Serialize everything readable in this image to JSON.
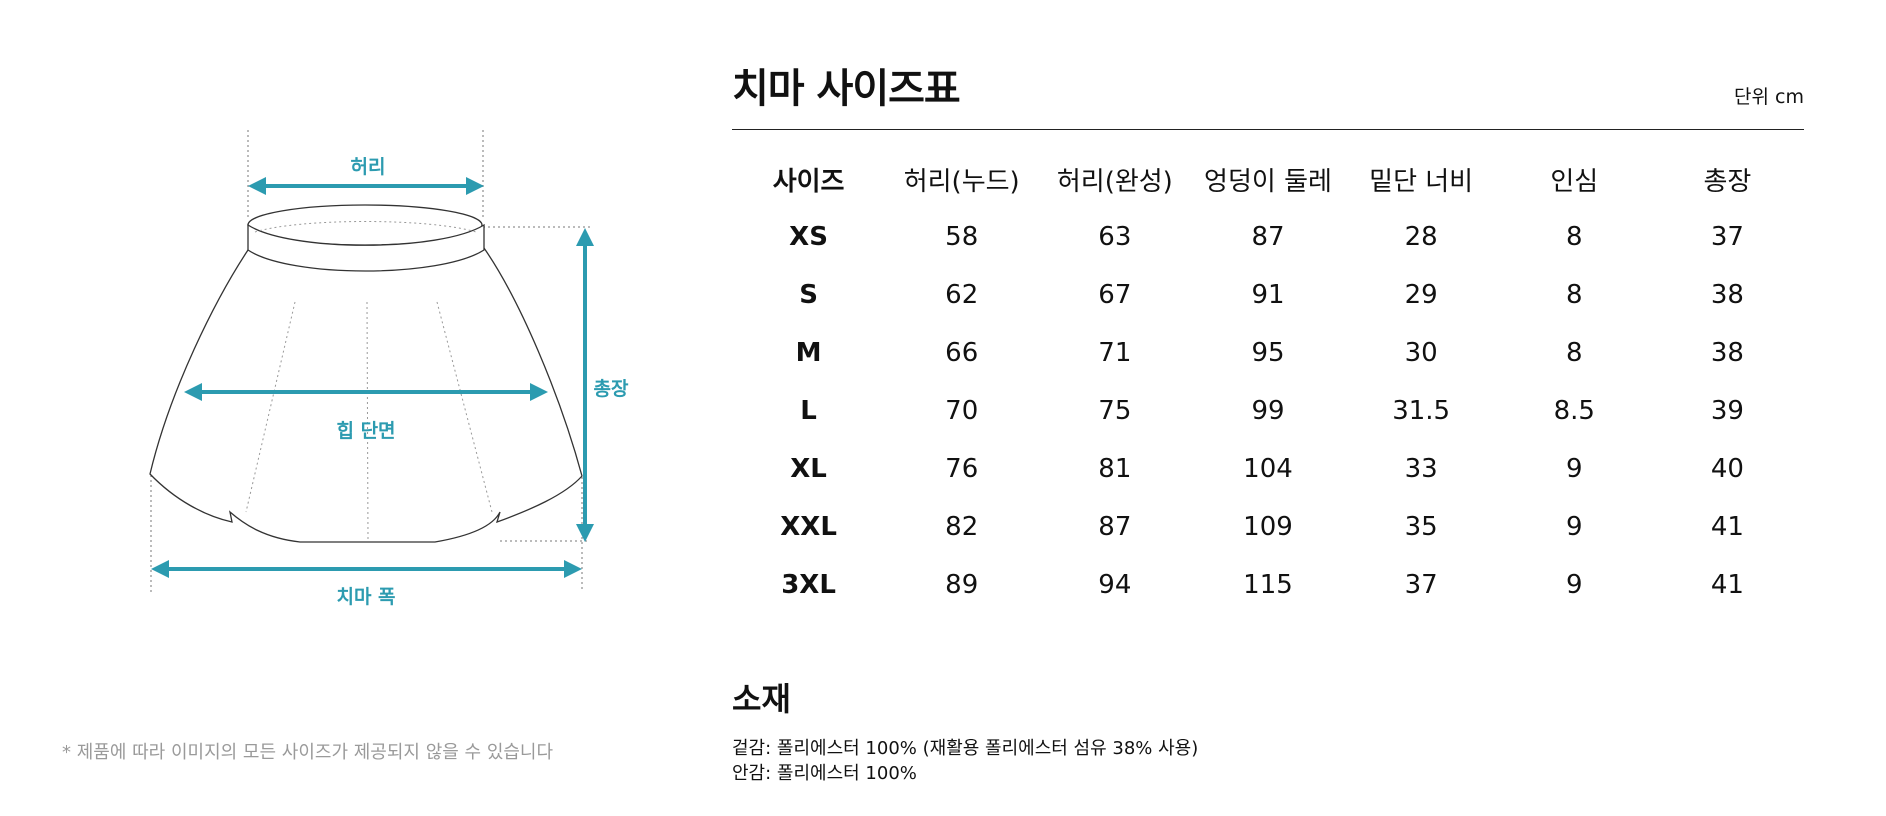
{
  "diagram": {
    "labels": {
      "waist": "허리",
      "hip": "힙 단면",
      "length": "총장",
      "width": "치마 폭"
    },
    "accent_color": "#2c9bb0"
  },
  "footnote": "* 제품에 따라 이미지의 모든 사이즈가 제공되지 않을 수 있습니다",
  "title": "치마 사이즈표",
  "unit": "단위 cm",
  "table": {
    "headers": [
      "사이즈",
      "허리(누드)",
      "허리(완성)",
      "엉덩이 둘레",
      "밑단 너비",
      "인심",
      "총장"
    ],
    "rows": [
      [
        "XS",
        "58",
        "63",
        "87",
        "28",
        "8",
        "37"
      ],
      [
        "S",
        "62",
        "67",
        "91",
        "29",
        "8",
        "38"
      ],
      [
        "M",
        "66",
        "71",
        "95",
        "30",
        "8",
        "38"
      ],
      [
        "L",
        "70",
        "75",
        "99",
        "31.5",
        "8.5",
        "39"
      ],
      [
        "XL",
        "76",
        "81",
        "104",
        "33",
        "9",
        "40"
      ],
      [
        "XXL",
        "82",
        "87",
        "109",
        "35",
        "9",
        "41"
      ],
      [
        "3XL",
        "89",
        "94",
        "115",
        "37",
        "9",
        "41"
      ]
    ]
  },
  "material": {
    "title": "소재",
    "lines": [
      "겉감: 폴리에스터 100% (재활용 폴리에스터 섬유 38% 사용)",
      "안감: 폴리에스터 100%"
    ]
  }
}
